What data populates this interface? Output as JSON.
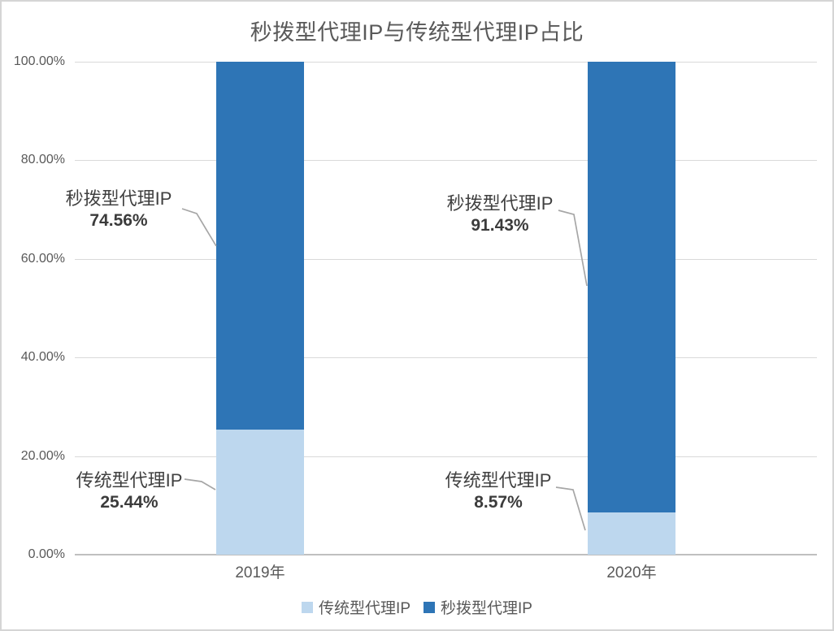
{
  "title": "秒拨型代理IP与传统型代理IP占比",
  "chart_data": {
    "type": "bar",
    "stacked": true,
    "title": "秒拨型代理IP与传统型代理IP占比",
    "categories": [
      "2019年",
      "2020年"
    ],
    "series": [
      {
        "name": "传统型代理IP",
        "color": "#BDD7EE",
        "values": [
          25.44,
          8.57
        ]
      },
      {
        "name": "秒拨型代理IP",
        "color": "#2E75B6",
        "values": [
          74.56,
          91.43
        ]
      }
    ],
    "xlabel": "",
    "ylabel": "",
    "ylim": [
      0,
      100
    ],
    "y_tick_values": [
      100,
      80,
      60,
      40,
      20,
      0
    ],
    "y_tick_labels": [
      "100.00%",
      "80.00%",
      "60.00%",
      "40.00%",
      "20.00%",
      "0.00%"
    ],
    "grid": true,
    "legend_position": "bottom",
    "legend": [
      "传统型代理IP",
      "秒拨型代理IP"
    ],
    "annotations": [
      {
        "series": "秒拨型代理IP",
        "category": "2019年",
        "label": "秒拨型代理IP",
        "value": "74.56%"
      },
      {
        "series": "秒拨型代理IP",
        "category": "2020年",
        "label": "秒拨型代理IP",
        "value": "91.43%"
      },
      {
        "series": "传统型代理IP",
        "category": "2019年",
        "label": "传统型代理IP",
        "value": "25.44%"
      },
      {
        "series": "传统型代理IP",
        "category": "2020年",
        "label": "传统型代理IP",
        "value": "8.57%"
      }
    ],
    "colors": {
      "traditional_proxy": "#BDD7EE",
      "second_dial_proxy": "#2E75B6",
      "gridline": "#D9D9D9",
      "axis_line": "#BFBFBF",
      "leader_line": "#A6A6A6",
      "tick_text": "#595959",
      "callout_text": "#404040"
    }
  }
}
